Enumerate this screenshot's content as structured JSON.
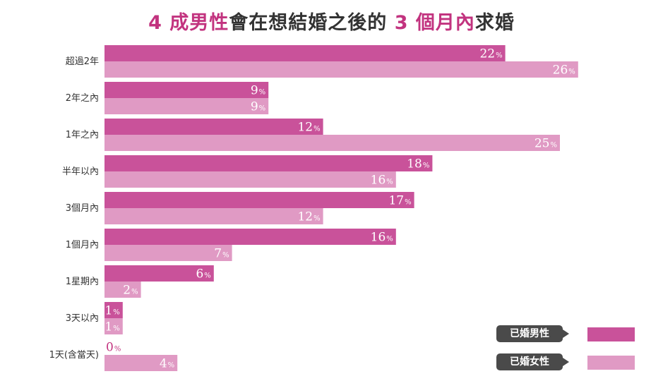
{
  "title": {
    "part1": "4 成",
    "part2": "男性",
    "part3": "會在想結婚之後的",
    "part4": "3 個月內",
    "part5": "求婚"
  },
  "chart_data": {
    "type": "bar",
    "orientation": "horizontal",
    "unit": "%",
    "categories": [
      "超過2年",
      "2年之內",
      "1年之內",
      "半年以內",
      "3個月內",
      "1個月內",
      "1星期內",
      "3天以內",
      "1天(含當天)"
    ],
    "series": [
      {
        "name": "已婚男性",
        "color": "#c9529a",
        "values": [
          22,
          9,
          12,
          18,
          17,
          16,
          6,
          1,
          0
        ]
      },
      {
        "name": "已婚女性",
        "color": "#e09ac4",
        "values": [
          26,
          9,
          25,
          16,
          12,
          7,
          2,
          1,
          4
        ]
      }
    ],
    "xlim": [
      0,
      26
    ],
    "grid": false,
    "legend_position": "bottom-right"
  }
}
